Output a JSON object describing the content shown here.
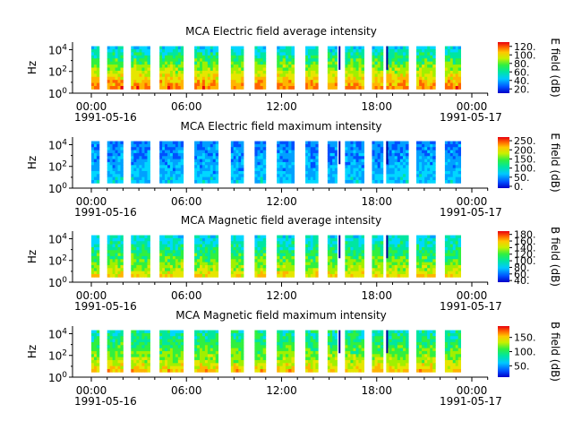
{
  "chart_data": [
    {
      "type": "heatmap",
      "title": "MCA  Electric field average intensity",
      "ylabel": "Hz",
      "ytick_labels": [
        "10^0",
        "10^2",
        "10^4"
      ],
      "yrange_log10": [
        0,
        4.7
      ],
      "x_ticks": [
        "00:00",
        "06:00",
        "12:00",
        "18:00",
        "00:00"
      ],
      "x_start_date": "1991-05-16",
      "x_end_date": "1991-05-17",
      "colorbar": {
        "label": "E field (dB)",
        "ticks": [
          20,
          40,
          60,
          80,
          100,
          120
        ],
        "tick_labels": [
          "20.",
          "40.",
          "60.",
          "80.",
          "100.",
          "120."
        ],
        "range": [
          10,
          130
        ]
      },
      "colormap": "rainbow",
      "hot_color": "#e8000f",
      "low_color": "#0000c8"
    },
    {
      "type": "heatmap",
      "title": "MCA  Electric field maximum intensity",
      "ylabel": "Hz",
      "ytick_labels": [
        "10^0",
        "10^2",
        "10^4"
      ],
      "yrange_log10": [
        0,
        4.7
      ],
      "x_ticks": [
        "00:00",
        "06:00",
        "12:00",
        "18:00",
        "00:00"
      ],
      "x_start_date": "1991-05-16",
      "x_end_date": "1991-05-17",
      "colorbar": {
        "label": "E field (dB)",
        "ticks": [
          0,
          50,
          100,
          150,
          200,
          250
        ],
        "tick_labels": [
          "0.",
          "50.",
          "100.",
          "150.",
          "200.",
          "250."
        ],
        "range": [
          -10,
          270
        ]
      },
      "colormap": "rainbow"
    },
    {
      "type": "heatmap",
      "title": "MCA  Magnetic field average intensity",
      "ylabel": "Hz",
      "ytick_labels": [
        "10^0",
        "10^2",
        "10^4"
      ],
      "yrange_log10": [
        0,
        4.7
      ],
      "x_ticks": [
        "00:00",
        "06:00",
        "12:00",
        "18:00",
        "00:00"
      ],
      "x_start_date": "1991-05-16",
      "x_end_date": "1991-05-17",
      "colorbar": {
        "label": "B field (dB)",
        "ticks": [
          40,
          60,
          80,
          100,
          120,
          140,
          160,
          180
        ],
        "tick_labels": [
          "40.",
          "60.",
          "80.",
          "100.",
          "120.",
          "140.",
          "160.",
          "180."
        ],
        "range": [
          35,
          190
        ]
      },
      "colormap": "rainbow"
    },
    {
      "type": "heatmap",
      "title": "MCA  Magnetic field maximum intensity",
      "ylabel": "Hz",
      "ytick_labels": [
        "10^0",
        "10^2",
        "10^4"
      ],
      "yrange_log10": [
        0,
        4.7
      ],
      "x_ticks": [
        "00:00",
        "06:00",
        "12:00",
        "18:00",
        "00:00"
      ],
      "x_start_date": "1991-05-16",
      "x_end_date": "1991-05-17",
      "colorbar": {
        "label": "B field (dB)",
        "ticks": [
          50,
          100,
          150
        ],
        "tick_labels": [
          "50.",
          "100.",
          "150."
        ],
        "range": [
          10,
          190
        ]
      },
      "colormap": "rainbow"
    }
  ]
}
